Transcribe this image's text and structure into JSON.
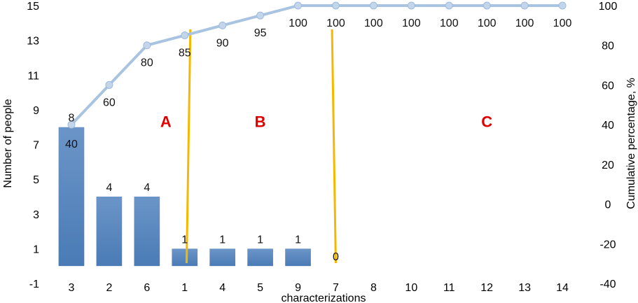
{
  "chart_data": {
    "type": "bar",
    "title": "",
    "xlabel": "characterizations",
    "ylabel": "Number of people",
    "y2label": "Cumulative percentage, %",
    "categories": [
      "3",
      "2",
      "6",
      "1",
      "4",
      "5",
      "9",
      "7",
      "8",
      "10",
      "11",
      "12",
      "13",
      "14"
    ],
    "series": [
      {
        "kind": "bar",
        "axis": "left",
        "values": [
          8,
          4,
          4,
          1,
          1,
          1,
          1,
          0,
          0,
          0,
          0,
          0,
          0,
          0
        ],
        "data_labels": [
          "8",
          "4",
          "4",
          "1",
          "1",
          "1",
          "1",
          "0",
          "",
          "",
          "",
          "",
          "",
          ""
        ]
      },
      {
        "kind": "line",
        "axis": "right",
        "values": [
          40,
          60,
          80,
          85,
          90,
          95,
          100,
          100,
          100,
          100,
          100,
          100,
          100,
          100
        ],
        "data_labels": [
          "40",
          "60",
          "80",
          "85",
          "90",
          "95",
          "100",
          "100",
          "100",
          "100",
          "100",
          "100",
          "100",
          "100"
        ]
      }
    ],
    "ylim": [
      -1,
      15
    ],
    "yticks": [
      "-1",
      "1",
      "3",
      "5",
      "7",
      "9",
      "11",
      "13",
      "15"
    ],
    "y2lim": [
      -40,
      100
    ],
    "y2ticks": [
      "-40",
      "-20",
      "0",
      "20",
      "40",
      "60",
      "80",
      "100"
    ],
    "zones": [
      {
        "label": "A",
        "x": 2.5
      },
      {
        "label": "B",
        "x": 5.0
      },
      {
        "label": "C",
        "x": 11.0
      }
    ],
    "zone_dividers": [
      {
        "x_top": 3.15,
        "x_bottom": 3.05
      },
      {
        "x_top": 6.9,
        "x_bottom": 7.0
      }
    ],
    "colors": {
      "bar": "#4a7bb5",
      "line": "#a9c4e0",
      "marker": "#c3d5ea",
      "divider": "#f5b800",
      "zone_label": "#e00000"
    }
  }
}
